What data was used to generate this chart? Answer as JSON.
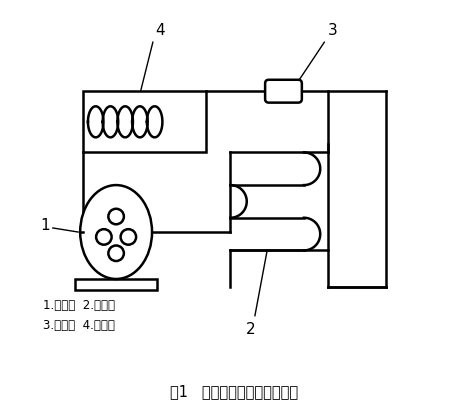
{
  "title": "图1   冰淇淋机制冷系统组成图",
  "legend_text": "1.压缩机  2.冷凝器\n3.节流阀  4.蒸发器",
  "background_color": "#ffffff",
  "line_color": "#000000",
  "fig_width": 4.69,
  "fig_height": 4.11,
  "dpi": 100
}
